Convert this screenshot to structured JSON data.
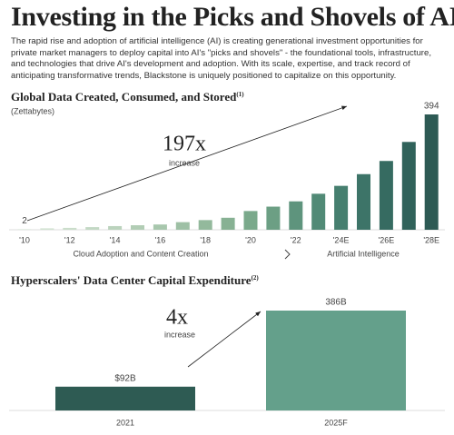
{
  "header": {
    "title": "Investing in the Picks and Shovels of AI",
    "body": "The rapid rise and adoption of artificial intelligence (AI) is creating generational investment opportunities for private market managers to deploy capital into AI's \"picks and shovels\" - the foundational tools, infrastructure, and technologies that drive AI's development and adoption. With its scale, expertise, and track record of anticipating transformative trends, Blackstone is uniquely positioned to capitalize on this opportunity."
  },
  "chart_data": [
    {
      "type": "bar",
      "title": "Global Data Created, Consumed, and Stored",
      "title_note": "(1)",
      "subtitle": "(Zettabytes)",
      "categories": [
        "'10",
        null,
        "'12",
        null,
        "'14",
        null,
        "'16",
        null,
        "'18",
        null,
        "'20",
        null,
        "'22",
        null,
        "'24E",
        null,
        "'26E",
        null,
        "'28E"
      ],
      "values": [
        2,
        5,
        6.5,
        9,
        12.5,
        15.5,
        18,
        26,
        33,
        41,
        64,
        79,
        97,
        123,
        150,
        190,
        235,
        300,
        394
      ],
      "value_labels": [
        "2",
        null,
        null,
        null,
        null,
        null,
        null,
        null,
        null,
        null,
        null,
        null,
        null,
        null,
        null,
        null,
        null,
        null,
        "394"
      ],
      "colors": [
        "#d9e6d9",
        "#d2e2d2",
        "#cbddcb",
        "#c3d8c4",
        "#bbd3bd",
        "#b2cdb5",
        "#a8c7ad",
        "#9ec0a5",
        "#93b99c",
        "#87b193",
        "#7aa98b",
        "#6c9f84",
        "#5e947d",
        "#518a76",
        "#467f6f",
        "#3d7468",
        "#366b61",
        "#30625a",
        "#2d5a54"
      ],
      "annotations": [
        "197x",
        "increase"
      ],
      "sections": [
        "Cloud Adoption and Content Creation",
        "Artificial Intelligence"
      ]
    },
    {
      "type": "bar",
      "title": "Hyperscalers' Data Center Capital Expenditure",
      "title_note": "(2)",
      "categories": [
        "2021",
        "2025F"
      ],
      "values": [
        92,
        386
      ],
      "value_labels": [
        "$92B",
        "386B"
      ],
      "colors": [
        "#2e5b53",
        "#64a08b"
      ],
      "annotations": [
        "4x",
        "increase"
      ]
    }
  ]
}
